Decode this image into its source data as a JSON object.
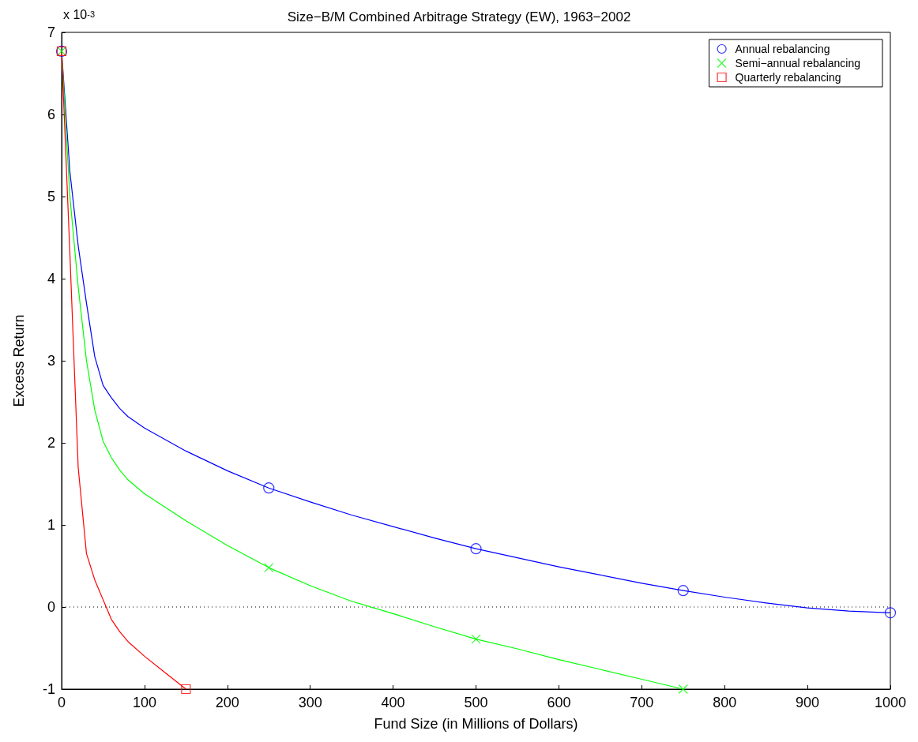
{
  "chart_data": {
    "type": "line",
    "title": "Size−B/M Combined Arbitrage Strategy (EW), 1963−2002",
    "xlabel": "Fund Size (in Millions of Dollars)",
    "ylabel": "Excess Return",
    "annotations": [
      "x 10$^{-3}$"
    ],
    "series": [
      {
        "type": "line",
        "color": "#0000ff",
        "x": [
          0,
          10,
          20,
          30,
          40,
          50,
          60,
          70,
          80,
          100,
          150,
          200,
          250,
          300,
          350,
          400,
          450,
          500,
          550,
          600,
          650,
          700,
          750,
          800,
          850,
          900,
          950,
          1000
        ],
        "values": [
          6.77,
          5.3,
          4.4,
          3.7,
          3.05,
          2.7,
          2.55,
          2.42,
          2.32,
          2.18,
          1.9,
          1.66,
          1.45,
          1.28,
          1.12,
          0.98,
          0.84,
          0.71,
          0.6,
          0.49,
          0.39,
          0.29,
          0.2,
          0.12,
          0.05,
          -0.01,
          -0.05,
          -0.07
        ]
      },
      {
        "type": "line",
        "color": "#00ff00",
        "x": [
          0,
          10,
          20,
          30,
          40,
          50,
          60,
          70,
          80,
          100,
          150,
          200,
          250,
          300,
          350,
          400,
          450,
          500,
          550,
          600,
          650,
          700,
          750
        ],
        "values": [
          6.77,
          5.0,
          3.9,
          3.0,
          2.4,
          2.02,
          1.82,
          1.67,
          1.55,
          1.38,
          1.05,
          0.75,
          0.48,
          0.26,
          0.07,
          -0.08,
          -0.24,
          -0.39,
          -0.51,
          -0.64,
          -0.76,
          -0.88,
          -1.0
        ]
      },
      {
        "type": "line",
        "color": "#ff0000",
        "x": [
          0,
          10,
          20,
          30,
          40,
          50,
          60,
          70,
          80,
          100,
          125,
          150
        ],
        "values": [
          6.77,
          4.3,
          1.7,
          0.65,
          0.33,
          0.09,
          -0.15,
          -0.3,
          -0.42,
          -0.6,
          -0.8,
          -1.0
        ]
      },
      {
        "type": "scatter",
        "name": "Annual rebalancing",
        "color": "#0000ff",
        "marker": "circle",
        "x": [
          0,
          250,
          500,
          750,
          1000
        ],
        "values": [
          6.77,
          1.45,
          0.71,
          0.2,
          -0.07
        ]
      },
      {
        "type": "scatter",
        "name": "Semi−annual rebalancing",
        "color": "#00ff00",
        "marker": "cross",
        "x": [
          0,
          250,
          500,
          750
        ],
        "values": [
          6.77,
          0.48,
          -0.39,
          -1.0
        ]
      },
      {
        "type": "scatter",
        "name": "Quarterly rebalancing",
        "color": "#ff0000",
        "marker": "square",
        "x": [
          0,
          150
        ],
        "values": [
          6.77,
          -1.0
        ]
      }
    ],
    "xlim": [
      0,
      1000
    ],
    "xticks": [
      0,
      100,
      200,
      300,
      400,
      500,
      600,
      700,
      800,
      900,
      1000
    ],
    "ylim": [
      -1,
      7
    ],
    "yticks": [
      -1,
      0,
      1,
      2,
      3,
      4,
      5,
      6,
      7
    ],
    "ref_lines": [
      {
        "axis": "y",
        "value": 0,
        "color": "#000000",
        "line_style": "dotted"
      }
    ],
    "legend": "top right"
  }
}
